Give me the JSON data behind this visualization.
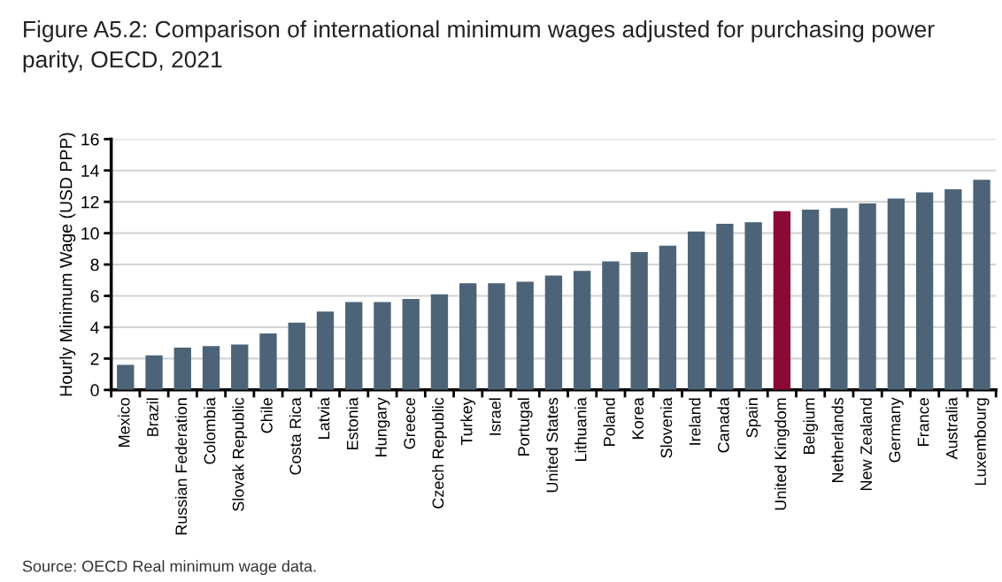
{
  "chart_data": {
    "type": "bar",
    "title": "Figure A5.2: Comparison of international minimum wages adjusted for purchasing power parity, OECD, 2021",
    "ylabel": "Hourly Minimum Wage (USD PPP)",
    "categories": [
      "Mexico",
      "Brazil",
      "Russian Federation",
      "Colombia",
      "Slovak Republic",
      "Chile",
      "Costa Rica",
      "Latvia",
      "Estonia",
      "Hungary",
      "Greece",
      "Czech Republic",
      "Turkey",
      "Israel",
      "Portugal",
      "United States",
      "Lithuania",
      "Poland",
      "Korea",
      "Slovenia",
      "Ireland",
      "Canada",
      "Spain",
      "United Kingdom",
      "Belgium",
      "Netherlands",
      "New Zealand",
      "Germany",
      "France",
      "Australia",
      "Luxembourg"
    ],
    "values": [
      1.6,
      2.2,
      2.7,
      2.8,
      2.9,
      3.6,
      4.3,
      5.0,
      5.6,
      5.6,
      5.8,
      6.1,
      6.8,
      6.8,
      6.9,
      7.3,
      7.6,
      8.2,
      8.8,
      9.2,
      10.1,
      10.6,
      10.7,
      11.4,
      11.5,
      11.6,
      11.9,
      12.2,
      12.6,
      12.8,
      13.4
    ],
    "colors": [
      "#4d6478",
      "#4d6478",
      "#4d6478",
      "#4d6478",
      "#4d6478",
      "#4d6478",
      "#4d6478",
      "#4d6478",
      "#4d6478",
      "#4d6478",
      "#4d6478",
      "#4d6478",
      "#4d6478",
      "#4d6478",
      "#4d6478",
      "#4d6478",
      "#4d6478",
      "#4d6478",
      "#4d6478",
      "#4d6478",
      "#4d6478",
      "#4d6478",
      "#4d6478",
      "#8b0a35",
      "#4d6478",
      "#4d6478",
      "#4d6478",
      "#4d6478",
      "#4d6478",
      "#4d6478",
      "#4d6478"
    ],
    "ylim": [
      0,
      16
    ],
    "yticks": [
      0,
      2,
      4,
      6,
      8,
      10,
      12,
      14,
      16
    ],
    "grid": "y",
    "annotations": [
      "Source: OECD Real minimum wage data."
    ]
  }
}
